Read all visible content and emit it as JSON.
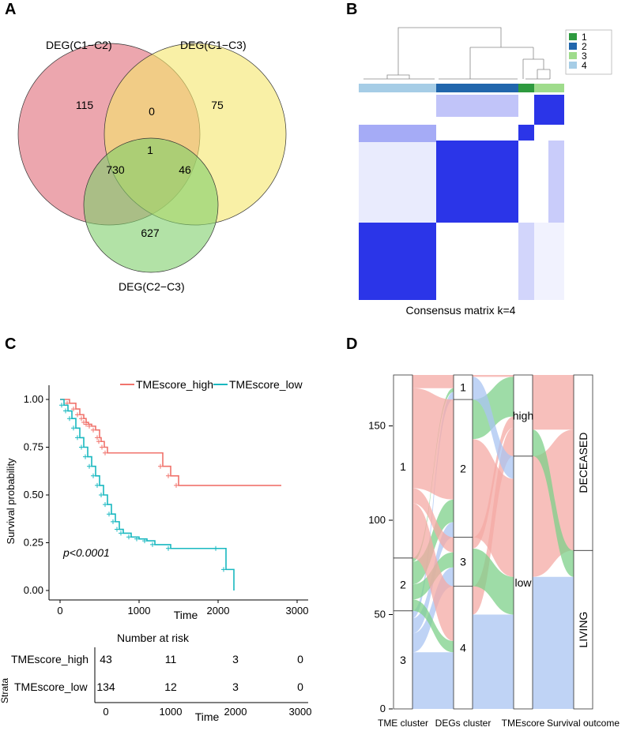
{
  "panels": {
    "a": "A",
    "b": "B",
    "c": "C",
    "d": "D"
  },
  "chart_data": [
    {
      "type": "venn",
      "title": "A",
      "sets": [
        {
          "name": "DEG(C1−C2)",
          "color": "#e06b78"
        },
        {
          "name": "DEG(C1−C3)",
          "color": "#f5e66a"
        },
        {
          "name": "DEG(C2−C3)",
          "color": "#7ecf6a"
        }
      ],
      "regions": [
        {
          "id": "only_12",
          "value": "115"
        },
        {
          "id": "only_13",
          "value": "75"
        },
        {
          "id": "only_23",
          "value": "627"
        },
        {
          "id": "12_13",
          "value": "0"
        },
        {
          "id": "12_23",
          "value": "730"
        },
        {
          "id": "13_23",
          "value": "46"
        },
        {
          "id": "all",
          "value": "1"
        }
      ]
    },
    {
      "type": "heatmap",
      "title": "B",
      "caption": "Consensus matrix k=4",
      "legend": [
        {
          "label": "1",
          "color": "#2e9a3f"
        },
        {
          "label": "2",
          "color": "#2166ac"
        },
        {
          "label": "3",
          "color": "#9fdc8c"
        },
        {
          "label": "4",
          "color": "#a6cde6"
        }
      ]
    },
    {
      "type": "line",
      "title": "C",
      "xlabel": "Time",
      "ylabel": "Survival probability",
      "xlim": [
        0,
        3000
      ],
      "ylim": [
        0,
        1
      ],
      "xticks": [
        "0",
        "1000",
        "2000",
        "3000"
      ],
      "yticks": [
        "0.00",
        "0.25",
        "0.50",
        "0.75",
        "1.00"
      ],
      "annotation": "p<0.0001",
      "series": [
        {
          "name": "TMEscore_high",
          "color": "#f0736c",
          "x": [
            0,
            120,
            200,
            250,
            300,
            330,
            360,
            400,
            450,
            500,
            520,
            560,
            600,
            1300,
            1400,
            1500,
            2800
          ],
          "y": [
            1.0,
            0.98,
            0.95,
            0.92,
            0.9,
            0.88,
            0.87,
            0.86,
            0.84,
            0.8,
            0.78,
            0.75,
            0.72,
            0.65,
            0.6,
            0.55,
            0.55
          ]
        },
        {
          "name": "TMEscore_low",
          "color": "#19b8c0",
          "x": [
            0,
            50,
            100,
            150,
            200,
            250,
            300,
            350,
            400,
            450,
            500,
            550,
            600,
            650,
            700,
            750,
            800,
            900,
            1000,
            1100,
            1200,
            1400,
            2000,
            2100,
            2200
          ],
          "y": [
            1.0,
            0.97,
            0.94,
            0.9,
            0.85,
            0.8,
            0.75,
            0.7,
            0.65,
            0.6,
            0.55,
            0.5,
            0.45,
            0.4,
            0.36,
            0.32,
            0.3,
            0.28,
            0.27,
            0.26,
            0.24,
            0.22,
            0.22,
            0.11,
            0.0
          ]
        }
      ],
      "risk_table": {
        "title": "Number at risk",
        "strata_label": "Strata",
        "xlabel": "Time",
        "xticks": [
          "0",
          "1000",
          "2000",
          "3000"
        ],
        "rows": [
          {
            "name": "TMEscore_high",
            "color": "#f0736c",
            "values": [
              "43",
              "11",
              "3",
              "0"
            ]
          },
          {
            "name": "TMEscore_low",
            "color": "#19b8c0",
            "values": [
              "134",
              "12",
              "3",
              "0"
            ]
          }
        ]
      }
    },
    {
      "type": "alluvial",
      "title": "D",
      "ylim": [
        0,
        177
      ],
      "yticks": [
        "0",
        "50",
        "100",
        "150"
      ],
      "axes": [
        "TME cluster",
        "DEGs cluster",
        "TMEscore",
        "Survival outcome"
      ],
      "strata": [
        [
          {
            "label": "3",
            "count": 52
          },
          {
            "label": "2",
            "count": 28
          },
          {
            "label": "1",
            "count": 97
          }
        ],
        [
          {
            "label": "4",
            "count": 65
          },
          {
            "label": "3",
            "count": 26
          },
          {
            "label": "2",
            "count": 73
          },
          {
            "label": "1",
            "count": 13
          }
        ],
        [
          {
            "label": "low",
            "count": 134
          },
          {
            "label": "high",
            "count": 43
          }
        ],
        [
          {
            "label": "LIVING",
            "count": 84
          },
          {
            "label": "DECEASED",
            "count": 93
          }
        ]
      ],
      "flow_colors": {
        "1": "#f4a9a4",
        "2": "#7ed08a",
        "3": "#a9c4f2"
      }
    }
  ]
}
